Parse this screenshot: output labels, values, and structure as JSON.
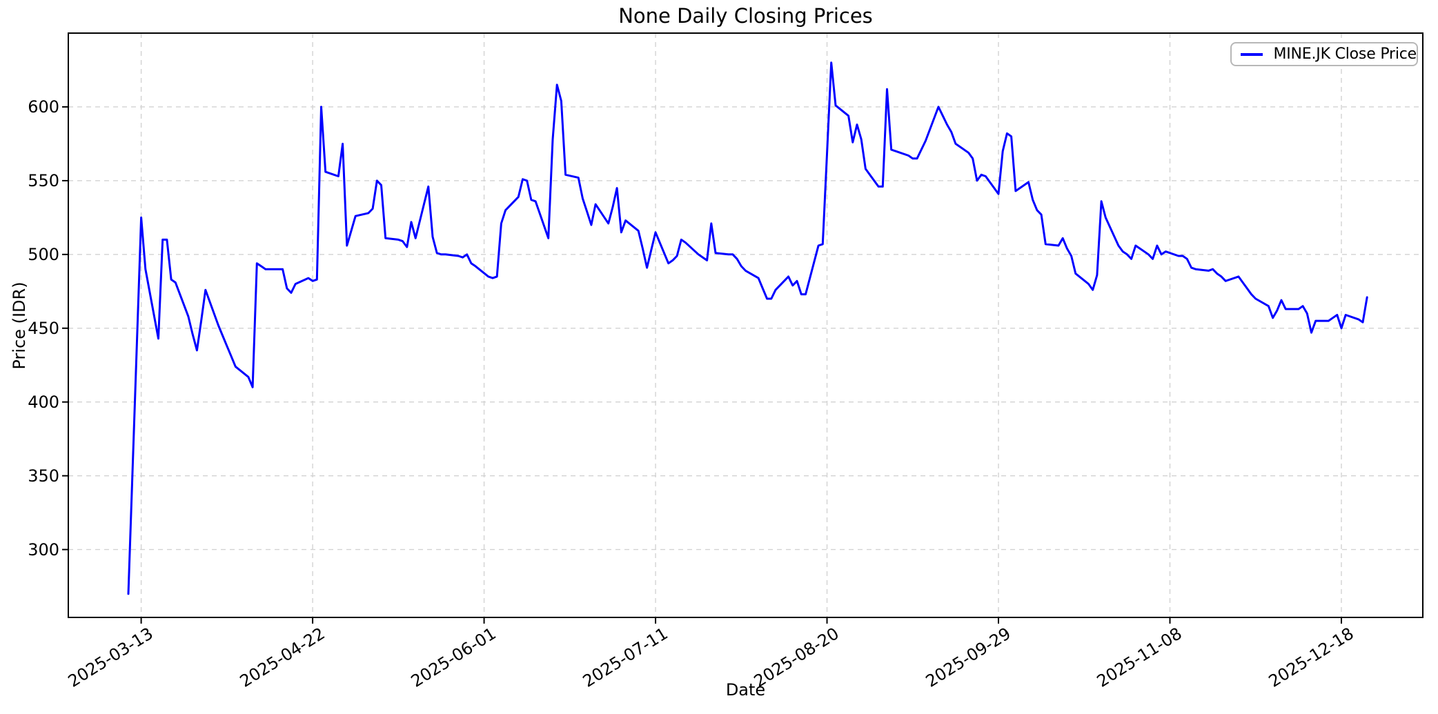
{
  "chart": {
    "title": "None Daily Closing Prices",
    "xlabel": "Date",
    "ylabel": "Price (IDR)",
    "legend_label": "MINE.JK Close Price"
  },
  "colors": {
    "line": "#0000ff",
    "grid": "#d2d2d2",
    "spine": "#000000",
    "tick": "#000000",
    "legend_border": "#b7b7b7",
    "background": "#ffffff"
  },
  "chart_data": {
    "type": "line",
    "title": "None Daily Closing Prices",
    "xlabel": "Date",
    "ylabel": "Price (IDR)",
    "grid": true,
    "grid_style": "dashed",
    "legend_position": "upper right",
    "ylim": [
      254,
      650
    ],
    "xlim_dates": [
      "2025-02-24",
      "2026-01-06"
    ],
    "y_ticks": [
      300,
      350,
      400,
      450,
      500,
      550,
      600
    ],
    "x_ticks": [
      "2025-03-13",
      "2025-04-22",
      "2025-06-01",
      "2025-07-11",
      "2025-08-20",
      "2025-09-29",
      "2025-11-08",
      "2025-12-18"
    ],
    "series": [
      {
        "name": "MINE.JK Close Price",
        "color": "#0000ff",
        "dates": [
          "2025-03-10",
          "2025-03-11",
          "2025-03-12",
          "2025-03-13",
          "2025-03-14",
          "2025-03-17",
          "2025-03-18",
          "2025-03-19",
          "2025-03-20",
          "2025-03-21",
          "2025-03-24",
          "2025-03-25",
          "2025-03-26",
          "2025-03-27",
          "2025-03-28",
          "2025-03-31",
          "2025-04-01",
          "2025-04-02",
          "2025-04-03",
          "2025-04-04",
          "2025-04-07",
          "2025-04-08",
          "2025-04-09",
          "2025-04-10",
          "2025-04-11",
          "2025-04-14",
          "2025-04-15",
          "2025-04-16",
          "2025-04-17",
          "2025-04-18",
          "2025-04-21",
          "2025-04-22",
          "2025-04-23",
          "2025-04-24",
          "2025-04-25",
          "2025-04-28",
          "2025-04-29",
          "2025-04-30",
          "2025-05-02",
          "2025-05-05",
          "2025-05-06",
          "2025-05-07",
          "2025-05-08",
          "2025-05-09",
          "2025-05-12",
          "2025-05-13",
          "2025-05-14",
          "2025-05-15",
          "2025-05-16",
          "2025-05-19",
          "2025-05-20",
          "2025-05-21",
          "2025-05-22",
          "2025-05-23",
          "2025-05-26",
          "2025-05-27",
          "2025-05-28",
          "2025-05-29",
          "2025-05-30",
          "2025-06-02",
          "2025-06-03",
          "2025-06-04",
          "2025-06-05",
          "2025-06-06",
          "2025-06-09",
          "2025-06-10",
          "2025-06-11",
          "2025-06-12",
          "2025-06-13",
          "2025-06-16",
          "2025-06-17",
          "2025-06-18",
          "2025-06-19",
          "2025-06-20",
          "2025-06-23",
          "2025-06-24",
          "2025-06-25",
          "2025-06-26",
          "2025-06-27",
          "2025-06-30",
          "2025-07-01",
          "2025-07-02",
          "2025-07-03",
          "2025-07-04",
          "2025-07-07",
          "2025-07-08",
          "2025-07-09",
          "2025-07-10",
          "2025-07-11",
          "2025-07-14",
          "2025-07-15",
          "2025-07-16",
          "2025-07-17",
          "2025-07-18",
          "2025-07-21",
          "2025-07-22",
          "2025-07-23",
          "2025-07-24",
          "2025-07-25",
          "2025-07-28",
          "2025-07-29",
          "2025-07-30",
          "2025-07-31",
          "2025-08-01",
          "2025-08-04",
          "2025-08-05",
          "2025-08-06",
          "2025-08-07",
          "2025-08-08",
          "2025-08-11",
          "2025-08-12",
          "2025-08-13",
          "2025-08-14",
          "2025-08-15",
          "2025-08-18",
          "2025-08-19",
          "2025-08-20",
          "2025-08-21",
          "2025-08-22",
          "2025-08-25",
          "2025-08-26",
          "2025-08-27",
          "2025-08-28",
          "2025-08-29",
          "2025-09-01",
          "2025-09-02",
          "2025-09-03",
          "2025-09-04",
          "2025-09-05",
          "2025-09-08",
          "2025-09-09",
          "2025-09-10",
          "2025-09-11",
          "2025-09-12",
          "2025-09-15",
          "2025-09-16",
          "2025-09-17",
          "2025-09-18",
          "2025-09-19",
          "2025-09-22",
          "2025-09-23",
          "2025-09-24",
          "2025-09-25",
          "2025-09-26",
          "2025-09-29",
          "2025-09-30",
          "2025-10-01",
          "2025-10-02",
          "2025-10-03",
          "2025-10-06",
          "2025-10-07",
          "2025-10-08",
          "2025-10-09",
          "2025-10-10",
          "2025-10-13",
          "2025-10-14",
          "2025-10-15",
          "2025-10-16",
          "2025-10-17",
          "2025-10-20",
          "2025-10-21",
          "2025-10-22",
          "2025-10-23",
          "2025-10-24",
          "2025-10-27",
          "2025-10-28",
          "2025-10-29",
          "2025-10-30",
          "2025-10-31",
          "2025-11-03",
          "2025-11-04",
          "2025-11-05",
          "2025-11-06",
          "2025-11-07",
          "2025-11-10",
          "2025-11-11",
          "2025-11-12",
          "2025-11-13",
          "2025-11-14",
          "2025-11-17",
          "2025-11-18",
          "2025-11-19",
          "2025-11-20",
          "2025-11-21",
          "2025-11-24",
          "2025-11-25",
          "2025-11-26",
          "2025-11-27",
          "2025-11-28",
          "2025-12-01",
          "2025-12-02",
          "2025-12-03",
          "2025-12-04",
          "2025-12-05",
          "2025-12-08",
          "2025-12-09",
          "2025-12-10",
          "2025-12-11",
          "2025-12-12",
          "2025-12-15",
          "2025-12-16",
          "2025-12-17",
          "2025-12-18",
          "2025-12-19",
          "2025-12-22",
          "2025-12-23",
          "2025-12-24"
        ],
        "values": [
          270,
          355,
          440,
          525,
          490,
          443,
          510,
          510,
          483,
          481,
          458,
          446,
          435,
          455,
          476,
          452,
          445,
          438,
          431,
          424,
          417,
          410,
          494,
          492,
          490,
          490,
          490,
          477,
          474,
          480,
          484,
          482,
          483,
          600,
          556,
          553,
          575,
          506,
          526,
          528,
          531,
          550,
          547,
          511,
          510,
          509,
          505,
          522,
          511,
          546,
          512,
          501,
          500,
          500,
          499,
          498,
          500,
          494,
          492,
          485,
          484,
          485,
          521,
          530,
          539,
          551,
          550,
          537,
          536,
          511,
          578,
          615,
          604,
          554,
          552,
          538,
          529,
          520,
          534,
          521,
          532,
          545,
          515,
          523,
          516,
          504,
          491,
          503,
          515,
          494,
          496,
          499,
          510,
          508,
          500,
          498,
          496,
          521,
          501,
          500,
          500,
          497,
          492,
          489,
          484,
          477,
          470,
          470,
          476,
          485,
          479,
          482,
          473,
          473,
          506,
          507,
          568,
          630,
          601,
          594,
          576,
          588,
          578,
          558,
          546,
          546,
          612,
          571,
          570,
          567,
          565,
          565,
          571,
          577,
          600,
          594,
          588,
          583,
          575,
          569,
          565,
          550,
          554,
          553,
          541,
          570,
          582,
          580,
          543,
          549,
          537,
          530,
          527,
          507,
          506,
          511,
          504,
          499,
          487,
          480,
          476,
          486,
          536,
          525,
          506,
          502,
          500,
          497,
          506,
          500,
          497,
          506,
          500,
          502,
          499,
          499,
          497,
          491,
          490,
          489,
          490,
          487,
          485,
          482,
          485,
          481,
          477,
          473,
          470,
          465,
          457,
          462,
          469,
          463,
          463,
          465,
          460,
          447,
          455,
          455,
          457,
          459,
          450,
          459,
          456,
          454,
          471
        ]
      }
    ]
  },
  "layout_note": "matplotlib-style daily close line chart"
}
